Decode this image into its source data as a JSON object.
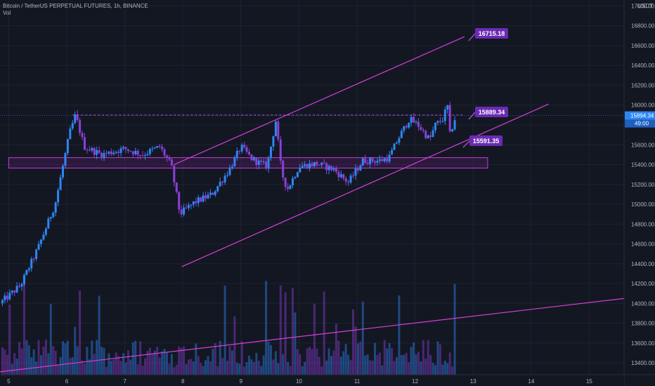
{
  "header": {
    "symbol_line": "Bitcoin / TetherUS PERPETUAL FUTURES, 1h, BINANCE",
    "volume_label": "Vol"
  },
  "chart_data": {
    "type": "candlestick",
    "quote_unit": "USDT",
    "y_axis": {
      "ylim": [
        13280,
        17060
      ],
      "ticks": [
        13400,
        13600,
        13800,
        14000,
        14200,
        14400,
        14600,
        14800,
        15000,
        15200,
        15400,
        15600,
        15800,
        16000,
        16200,
        16400,
        16600,
        16800,
        17000
      ],
      "tick_labels": [
        "13400.00",
        "13600.00",
        "13800.00",
        "14000.00",
        "14200.00",
        "14400.00",
        "14600.00",
        "14800.00",
        "15000.00",
        "15200.00",
        "15400.00",
        "15600.00",
        "15800.00",
        "16000.00",
        "16200.00",
        "16400.00",
        "16600.00",
        "16800.00",
        "17000.00"
      ]
    },
    "x_axis": {
      "xlim": [
        4.85,
        15.6
      ],
      "ticks": [
        5,
        6,
        7,
        8,
        9,
        10,
        11,
        12,
        13,
        14,
        15
      ],
      "tick_labels": [
        "5",
        "6",
        "7",
        "8",
        "9",
        "10",
        "11",
        "12",
        "13",
        "14",
        "15"
      ]
    },
    "last_price": {
      "value": 15894.34,
      "label": "15894.34",
      "countdown": "49:00"
    },
    "resistance_level": 15900,
    "support_zone": {
      "x_range": [
        5.0,
        13.25
      ],
      "y_range": [
        15365,
        15470
      ]
    },
    "trendlines": [
      {
        "name": "channel-upper",
        "from": [
          7.85,
          15400
        ],
        "to": [
          12.85,
          16690
        ]
      },
      {
        "name": "channel-lower",
        "from": [
          7.98,
          14370
        ],
        "to": [
          14.3,
          16010
        ]
      },
      {
        "name": "volume-trend",
        "from": [
          4.85,
          13310
        ],
        "to": [
          15.6,
          14050
        ]
      }
    ],
    "callouts": [
      {
        "label": "16715.18",
        "value": 16715.18
      },
      {
        "label": "15889.34",
        "value": 15889.34
      },
      {
        "label": "15591.35",
        "value": 15591.35
      }
    ],
    "path_anchors": [
      [
        4.85,
        14000
      ],
      [
        5.2,
        14180
      ],
      [
        5.5,
        14550
      ],
      [
        5.8,
        15000
      ],
      [
        6.05,
        15720
      ],
      [
        6.15,
        15900
      ],
      [
        6.3,
        15580
      ],
      [
        6.6,
        15500
      ],
      [
        7.0,
        15560
      ],
      [
        7.3,
        15500
      ],
      [
        7.6,
        15580
      ],
      [
        7.8,
        15390
      ],
      [
        7.95,
        14900
      ],
      [
        8.2,
        15020
      ],
      [
        8.5,
        15100
      ],
      [
        8.8,
        15350
      ],
      [
        9.0,
        15580
      ],
      [
        9.2,
        15450
      ],
      [
        9.45,
        15380
      ],
      [
        9.6,
        15840
      ],
      [
        9.7,
        15320
      ],
      [
        9.8,
        15150
      ],
      [
        10.0,
        15380
      ],
      [
        10.3,
        15410
      ],
      [
        10.6,
        15350
      ],
      [
        10.85,
        15220
      ],
      [
        11.1,
        15440
      ],
      [
        11.4,
        15440
      ],
      [
        11.55,
        15470
      ],
      [
        11.7,
        15650
      ],
      [
        11.9,
        15860
      ],
      [
        12.05,
        15800
      ],
      [
        12.25,
        15650
      ],
      [
        12.35,
        15800
      ],
      [
        12.5,
        15870
      ],
      [
        12.55,
        16040
      ],
      [
        12.6,
        15700
      ],
      [
        12.7,
        15890
      ]
    ],
    "volume_bars_approx": 220,
    "volume_scale_max": 100
  }
}
